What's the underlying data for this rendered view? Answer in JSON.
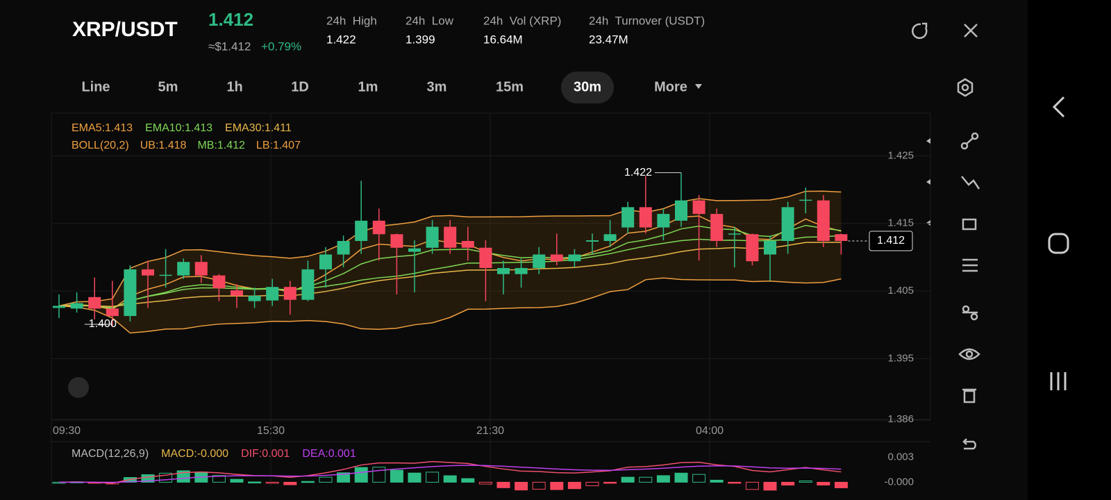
{
  "header": {
    "pair": "XRP/USDT",
    "price": "1.412",
    "usd_price": "≈$1.412",
    "change": "+0.79%",
    "stats": [
      {
        "label": "24h  High",
        "value": "1.422"
      },
      {
        "label": "24h  Low",
        "value": "1.399"
      },
      {
        "label": "24h  Vol (XRP)",
        "value": "16.64M"
      },
      {
        "label": "24h  Turnover (USDT)",
        "value": "23.47M"
      }
    ]
  },
  "tabs": [
    "Line",
    "5m",
    "1h",
    "1D",
    "1m",
    "3m",
    "15m",
    "30m",
    "More"
  ],
  "active_tab": "30m",
  "indicators": {
    "ema": [
      "EMA5:1.413",
      "EMA10:1.413",
      "EMA30:1.411"
    ],
    "boll": [
      "BOLL(20,2)",
      "UB:1.418",
      "MB:1.412",
      "LB:1.407"
    ],
    "macd": [
      "MACD(12,26,9)",
      "MACD:-0.000",
      "DIF:0.001",
      "DEA:0.001"
    ]
  },
  "chart_data": {
    "type": "candlestick",
    "open": [
      1.4025,
      1.4024,
      1.4041,
      1.4024,
      1.4013,
      1.4082,
      1.4073,
      1.4073,
      1.4093,
      1.4073,
      1.4051,
      1.4035,
      1.4036,
      1.4056,
      1.4037,
      1.4082,
      1.4104,
      1.4124,
      1.4154,
      1.4134,
      1.4108,
      1.4114,
      1.4145,
      1.4124,
      1.4114,
      1.4075,
      1.4075,
      1.4084,
      1.4104,
      1.4094,
      1.4123,
      1.4124,
      1.4144,
      1.4174,
      1.4144,
      1.4154,
      1.4184,
      1.4164,
      1.4134,
      1.4134,
      1.4104,
      1.4124,
      1.4184,
      1.4184,
      1.4134
    ],
    "high": [
      1.4045,
      1.4048,
      1.407,
      1.4065,
      1.4088,
      1.4095,
      1.4112,
      1.4098,
      1.4103,
      1.4075,
      1.406,
      1.4055,
      1.4068,
      1.4065,
      1.4095,
      1.4115,
      1.4132,
      1.4213,
      1.4172,
      1.4135,
      1.4125,
      1.4155,
      1.4155,
      1.4145,
      1.4125,
      1.4095,
      1.4098,
      1.4115,
      1.4135,
      1.4112,
      1.4135,
      1.4155,
      1.4182,
      1.422,
      1.4172,
      1.4225,
      1.4192,
      1.4172,
      1.4145,
      1.4135,
      1.4132,
      1.4182,
      1.4203,
      1.4192,
      1.4135
    ],
    "low": [
      1.401,
      1.4018,
      1.4008,
      1.3998,
      1.4005,
      1.4025,
      1.4055,
      1.4068,
      1.4062,
      1.4035,
      1.4025,
      1.4025,
      1.4028,
      1.4015,
      1.4035,
      1.4055,
      1.4085,
      1.4105,
      1.4095,
      1.4045,
      1.4048,
      1.4105,
      1.4105,
      1.4095,
      1.4035,
      1.4045,
      1.4055,
      1.4075,
      1.4088,
      1.4085,
      1.4105,
      1.4115,
      1.4135,
      1.4135,
      1.4125,
      1.4145,
      1.4095,
      1.4115,
      1.4085,
      1.4088,
      1.4065,
      1.4105,
      1.4165,
      1.4115,
      1.4104
    ],
    "close": [
      1.4028,
      1.4032,
      1.4024,
      1.4013,
      1.4082,
      1.4073,
      1.4074,
      1.4093,
      1.4073,
      1.4054,
      1.4043,
      1.4043,
      1.4056,
      1.4037,
      1.4082,
      1.4104,
      1.4124,
      1.4154,
      1.4134,
      1.4114,
      1.4113,
      1.4145,
      1.4114,
      1.4114,
      1.4084,
      1.4084,
      1.4084,
      1.4104,
      1.4094,
      1.4104,
      1.4125,
      1.4134,
      1.4174,
      1.4144,
      1.4164,
      1.4184,
      1.4164,
      1.4124,
      1.4135,
      1.4094,
      1.4124,
      1.4174,
      1.4185,
      1.4124,
      1.4124
    ],
    "up_color": "#2ebd85",
    "down_color": "#f6465d",
    "ylim": [
      1.3859,
      1.4313
    ],
    "yticks": [
      1.425,
      1.415,
      1.405,
      1.395,
      1.386
    ],
    "xlabels": [
      "09:30",
      "15:30",
      "21:30",
      "04:00"
    ],
    "annotations": {
      "high": "1.422",
      "low": "1.400",
      "last": "1.412"
    },
    "macd_ylim": [
      -0.0008,
      0.0037
    ],
    "macd_yticks": [
      0.003,
      {
        "value": 0,
        "label": "-0.000"
      }
    ]
  }
}
